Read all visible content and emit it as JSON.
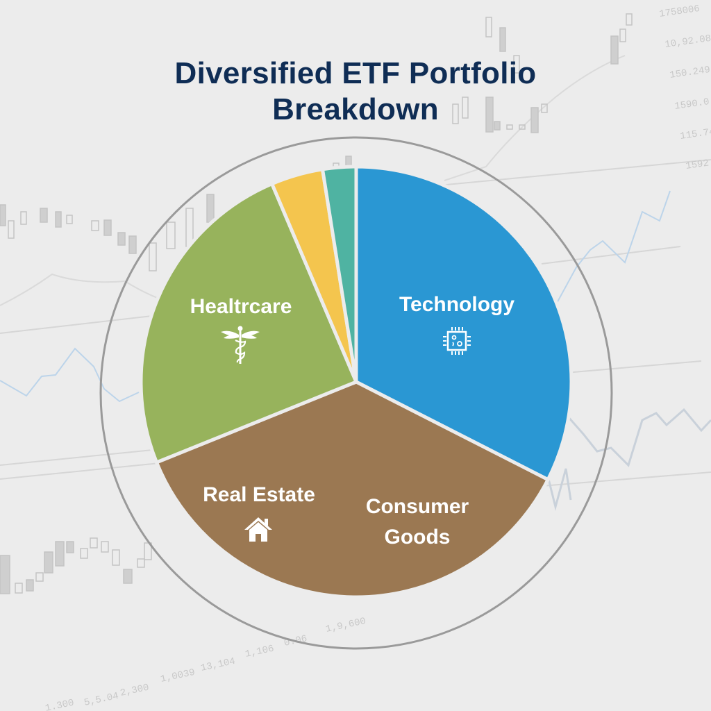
{
  "title": {
    "line1": "Diversified ETF Portfolio",
    "line2": "Breakdown"
  },
  "colors": {
    "title": "#0f2d55",
    "technology": "#2a97d3",
    "consumer_goods_real_estate": "#9b7852",
    "healthcare": "#97b35c",
    "yellow_slice": "#f4c54e",
    "teal_slice": "#4fb3a2",
    "background": "#ececec",
    "ring": "#9a9a9a"
  },
  "labels": {
    "technology": "Technology",
    "healthcare": "Healtrcare",
    "real_estate": "Real Estate",
    "consumer_goods_1": "Consumer",
    "consumer_goods_2": "Goods"
  },
  "icons": {
    "technology": "microchip-icon",
    "healthcare": "caduceus-icon",
    "real_estate": "house-icon"
  },
  "background_numbers": [
    "1758006",
    "10,92.08",
    "150.249",
    "1590.0",
    "115.74",
    "1592",
    "1.300",
    "5,5.04",
    "2,300",
    "1,0039",
    "13,104",
    "1,106",
    "0.06",
    "1,9,600"
  ],
  "chart_data": {
    "type": "pie",
    "title": "Diversified ETF Portfolio Breakdown",
    "categories": [
      "Technology",
      "Consumer Goods / Real Estate",
      "Healtrcare",
      "Unlabeled (yellow)",
      "Unlabeled (teal)"
    ],
    "values": [
      32.5,
      36.4,
      24.7,
      3.9,
      2.5
    ],
    "start_angle_deg_clockwise_from_top": 0,
    "legend": "none (labels inside slices)",
    "notes": "Brown slice contains both 'Real Estate' and 'Consumer Goods' labels; percentages estimated from slice angles"
  }
}
